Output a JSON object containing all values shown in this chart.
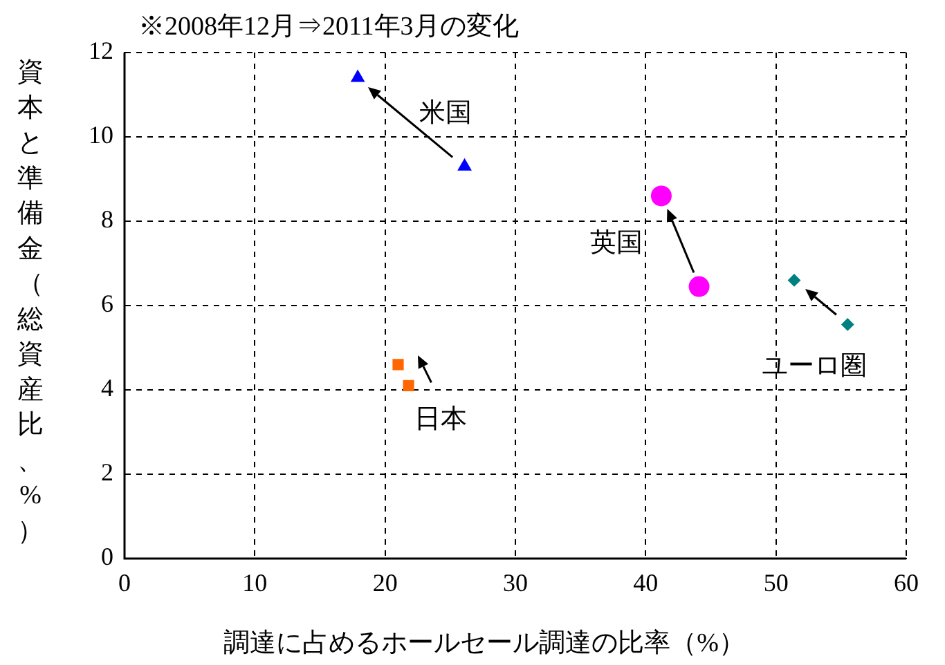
{
  "chart_data": {
    "type": "scatter",
    "title": "※2008年12月⇒2011年3月の変化",
    "xlabel": "調達に占めるホールセール調達の比率（%）",
    "ylabel": "資本と準備金（総資産比、%）",
    "series": [
      {
        "name": "米国",
        "color": "#0000ff",
        "marker": "triangle",
        "x": [
          26.1,
          17.9
        ],
        "values": [
          9.3,
          11.4
        ]
      },
      {
        "name": "英国",
        "color": "#ff00ff",
        "marker": "circle",
        "x": [
          44.1,
          41.2
        ],
        "values": [
          6.45,
          8.6
        ]
      },
      {
        "name": "ユーロ圏",
        "color": "#008080",
        "marker": "diamond",
        "x": [
          55.5,
          51.4
        ],
        "values": [
          5.55,
          6.6
        ]
      },
      {
        "name": "日本",
        "color": "#ff6600",
        "marker": "square",
        "x": [
          21.8,
          21.0
        ],
        "values": [
          4.1,
          4.6
        ]
      }
    ],
    "xlim": [
      0,
      60
    ],
    "xticks": [
      0,
      10,
      20,
      30,
      40,
      50,
      60
    ],
    "ylim": [
      0,
      12
    ],
    "yticks": [
      0,
      2,
      4,
      6,
      8,
      10,
      12
    ],
    "grid": true,
    "legend": false
  }
}
